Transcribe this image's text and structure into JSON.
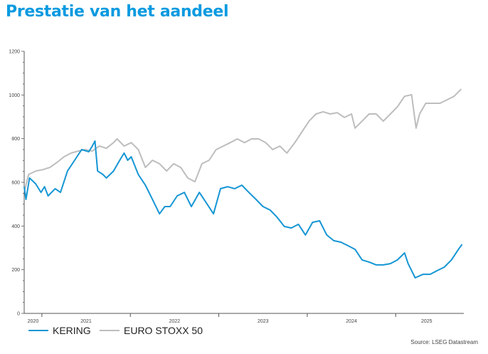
{
  "title": "Prestatie van het aandeel",
  "source": "Source: LSEG Datastream",
  "colors": {
    "kering": "#1596d4",
    "stoxx": "#bdbdbd",
    "title": "#0a9ae0"
  },
  "chart_data": {
    "type": "line",
    "title": "Prestatie van het aandeel",
    "xlabel": "",
    "ylabel": "",
    "xlim": [
      2020.8,
      2025.77
    ],
    "ylim": [
      0,
      1200
    ],
    "yticks": [
      0,
      200,
      400,
      600,
      800,
      1000,
      1200
    ],
    "ytick_labels": [
      "0",
      "200",
      "400",
      "600",
      "800",
      "1000",
      "1200"
    ],
    "year_boundaries": [
      2021,
      2022,
      2023,
      2024,
      2025
    ],
    "xtick_labels": [
      {
        "label": "2020",
        "at": 2020.9
      },
      {
        "label": "2021",
        "at": 2021.5
      },
      {
        "label": "2022",
        "at": 2022.5
      },
      {
        "label": "2023",
        "at": 2023.5
      },
      {
        "label": "2024",
        "at": 2024.5
      },
      {
        "label": "2025",
        "at": 2025.35
      }
    ],
    "legend_position": "bottom-left",
    "grid": false,
    "series": [
      {
        "name": "KERING",
        "color": "#1596d4",
        "points": [
          [
            2020.8,
            580
          ],
          [
            2020.82,
            522
          ],
          [
            2020.86,
            620
          ],
          [
            2020.93,
            593
          ],
          [
            2020.99,
            554
          ],
          [
            2021.03,
            580
          ],
          [
            2021.07,
            538
          ],
          [
            2021.15,
            571
          ],
          [
            2021.21,
            554
          ],
          [
            2021.29,
            652
          ],
          [
            2021.37,
            701
          ],
          [
            2021.45,
            750
          ],
          [
            2021.53,
            740
          ],
          [
            2021.57,
            766
          ],
          [
            2021.6,
            789
          ],
          [
            2021.63,
            652
          ],
          [
            2021.69,
            636
          ],
          [
            2021.73,
            620
          ],
          [
            2021.81,
            652
          ],
          [
            2021.88,
            701
          ],
          [
            2021.93,
            734
          ],
          [
            2021.97,
            701
          ],
          [
            2022.01,
            717
          ],
          [
            2022.09,
            636
          ],
          [
            2022.17,
            587
          ],
          [
            2022.25,
            522
          ],
          [
            2022.33,
            456
          ],
          [
            2022.39,
            489
          ],
          [
            2022.45,
            489
          ],
          [
            2022.53,
            538
          ],
          [
            2022.61,
            554
          ],
          [
            2022.69,
            489
          ],
          [
            2022.78,
            554
          ],
          [
            2022.86,
            505
          ],
          [
            2022.94,
            456
          ],
          [
            2023.02,
            571
          ],
          [
            2023.1,
            580
          ],
          [
            2023.18,
            571
          ],
          [
            2023.26,
            587
          ],
          [
            2023.34,
            554
          ],
          [
            2023.42,
            522
          ],
          [
            2023.5,
            489
          ],
          [
            2023.58,
            473
          ],
          [
            2023.66,
            440
          ],
          [
            2023.74,
            398
          ],
          [
            2023.82,
            391
          ],
          [
            2023.9,
            408
          ],
          [
            2023.98,
            359
          ],
          [
            2024.06,
            417
          ],
          [
            2024.14,
            424
          ],
          [
            2024.22,
            359
          ],
          [
            2024.3,
            333
          ],
          [
            2024.38,
            326
          ],
          [
            2024.46,
            310
          ],
          [
            2024.54,
            293
          ],
          [
            2024.62,
            245
          ],
          [
            2024.7,
            235
          ],
          [
            2024.78,
            222
          ],
          [
            2024.86,
            222
          ],
          [
            2024.94,
            228
          ],
          [
            2025.02,
            245
          ],
          [
            2025.1,
            277
          ],
          [
            2025.14,
            228
          ],
          [
            2025.22,
            163
          ],
          [
            2025.31,
            179
          ],
          [
            2025.39,
            179
          ],
          [
            2025.47,
            196
          ],
          [
            2025.55,
            212
          ],
          [
            2025.63,
            245
          ],
          [
            2025.71,
            293
          ],
          [
            2025.75,
            316
          ]
        ]
      },
      {
        "name": "EURO STOXX 50",
        "color": "#bdbdbd",
        "points": [
          [
            2020.8,
            555
          ],
          [
            2020.85,
            636
          ],
          [
            2020.93,
            652
          ],
          [
            2021.01,
            658
          ],
          [
            2021.09,
            668
          ],
          [
            2021.17,
            691
          ],
          [
            2021.25,
            717
          ],
          [
            2021.33,
            734
          ],
          [
            2021.41,
            743
          ],
          [
            2021.49,
            750
          ],
          [
            2021.57,
            743
          ],
          [
            2021.65,
            766
          ],
          [
            2021.73,
            756
          ],
          [
            2021.81,
            782
          ],
          [
            2021.85,
            799
          ],
          [
            2021.93,
            766
          ],
          [
            2022.01,
            782
          ],
          [
            2022.09,
            750
          ],
          [
            2022.17,
            668
          ],
          [
            2022.25,
            701
          ],
          [
            2022.33,
            685
          ],
          [
            2022.41,
            652
          ],
          [
            2022.49,
            685
          ],
          [
            2022.57,
            668
          ],
          [
            2022.65,
            620
          ],
          [
            2022.73,
            603
          ],
          [
            2022.81,
            685
          ],
          [
            2022.89,
            701
          ],
          [
            2022.97,
            750
          ],
          [
            2023.05,
            766
          ],
          [
            2023.13,
            782
          ],
          [
            2023.21,
            799
          ],
          [
            2023.29,
            782
          ],
          [
            2023.37,
            799
          ],
          [
            2023.45,
            799
          ],
          [
            2023.53,
            782
          ],
          [
            2023.61,
            750
          ],
          [
            2023.69,
            766
          ],
          [
            2023.77,
            734
          ],
          [
            2023.86,
            782
          ],
          [
            2023.94,
            831
          ],
          [
            2024.02,
            880
          ],
          [
            2024.1,
            913
          ],
          [
            2024.18,
            923
          ],
          [
            2024.26,
            913
          ],
          [
            2024.34,
            919
          ],
          [
            2024.42,
            897
          ],
          [
            2024.5,
            913
          ],
          [
            2024.54,
            848
          ],
          [
            2024.62,
            880
          ],
          [
            2024.7,
            913
          ],
          [
            2024.78,
            913
          ],
          [
            2024.86,
            880
          ],
          [
            2024.94,
            913
          ],
          [
            2025.02,
            946
          ],
          [
            2025.1,
            994
          ],
          [
            2025.18,
            1001
          ],
          [
            2025.23,
            848
          ],
          [
            2025.27,
            913
          ],
          [
            2025.34,
            962
          ],
          [
            2025.42,
            962
          ],
          [
            2025.5,
            962
          ],
          [
            2025.58,
            978
          ],
          [
            2025.66,
            994
          ],
          [
            2025.74,
            1027
          ]
        ]
      }
    ]
  }
}
